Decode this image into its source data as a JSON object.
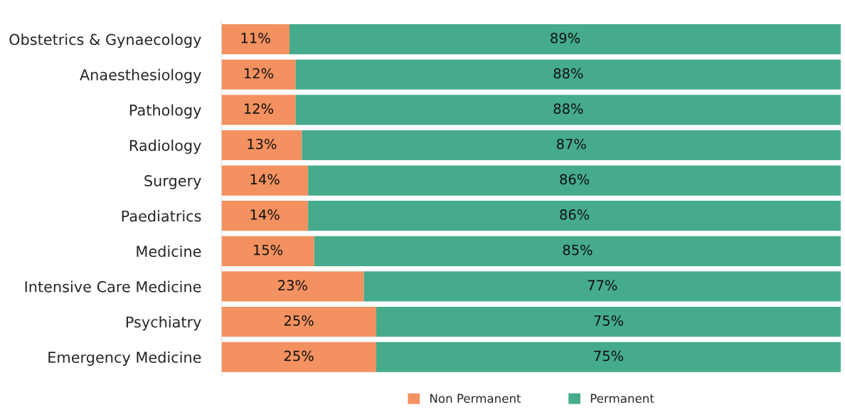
{
  "chart_data": {
    "type": "bar",
    "orientation": "horizontal",
    "stacked": true,
    "grid": false,
    "legend": "bottom",
    "tick_labels": "y",
    "categories": [
      "Obstetrics & Gynaecology",
      "Anaesthesiology",
      "Pathology",
      "Radiology",
      "Surgery",
      "Paediatrics",
      "Medicine",
      "Intensive Care Medicine",
      "Psychiatry",
      "Emergency Medicine"
    ],
    "series": [
      {
        "name": "Non Permanent",
        "color": "#f39160",
        "values": [
          11,
          12,
          12,
          13,
          14,
          14,
          15,
          23,
          25,
          25
        ],
        "value_labels": [
          "11%",
          "12%",
          "12%",
          "13%",
          "14%",
          "14%",
          "15%",
          "23%",
          "25%",
          "25%"
        ]
      },
      {
        "name": "Permanent",
        "color": "#45ab8c",
        "values": [
          89,
          88,
          88,
          87,
          86,
          86,
          85,
          77,
          75,
          75
        ],
        "value_labels": [
          "89%",
          "88%",
          "88%",
          "87%",
          "86%",
          "86%",
          "85%",
          "77%",
          "75%",
          "75%"
        ]
      }
    ]
  }
}
